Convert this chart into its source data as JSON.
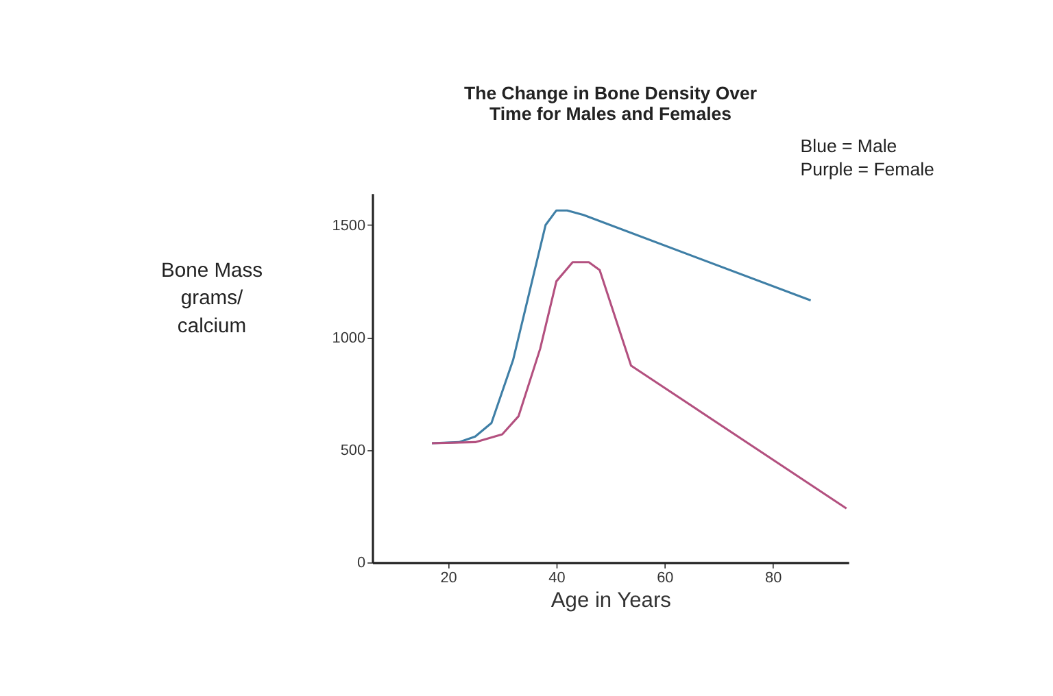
{
  "chart_data": {
    "type": "line",
    "title": "The Change in Bone Density Over Time for Males and Females",
    "xlabel": "Age in Years",
    "ylabel": "Bone Mass grams/ calcium",
    "annotations": [
      "Blue = Male",
      "Purple = Female"
    ],
    "xlim": [
      6,
      94
    ],
    "xticks": [
      20,
      40,
      60,
      80
    ],
    "ylim": [
      0,
      1640
    ],
    "yticks": [
      0,
      500,
      1000,
      1500
    ],
    "grid": false,
    "marker": "none",
    "line_style": "solid",
    "series": [
      {
        "color": "#3f7fa6",
        "x": [
          17,
          22,
          25,
          28,
          32,
          36,
          38,
          40,
          42,
          45,
          87
        ],
        "values": [
          530,
          535,
          560,
          620,
          900,
          1300,
          1500,
          1565,
          1565,
          1545,
          1165
        ]
      },
      {
        "color": "#b3507f",
        "x": [
          17,
          25,
          30,
          33,
          37,
          40,
          43,
          46,
          48,
          53.8,
          93.6
        ],
        "values": [
          530,
          535,
          570,
          650,
          950,
          1250,
          1335,
          1335,
          1300,
          875,
          240
        ]
      }
    ]
  }
}
